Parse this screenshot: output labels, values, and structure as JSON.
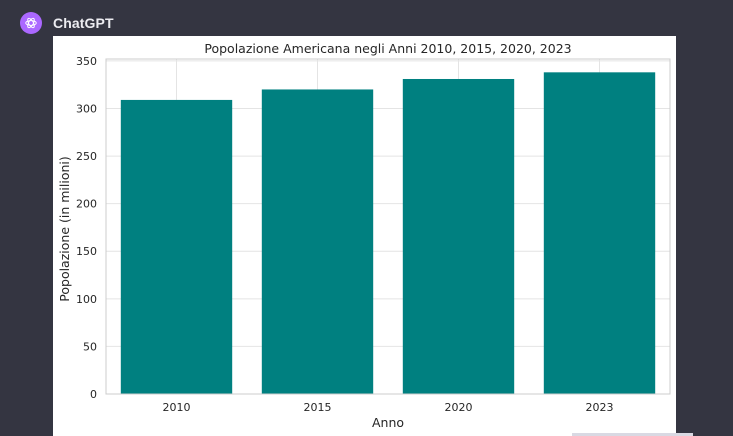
{
  "app": {
    "sender_name": "ChatGPT",
    "avatar_icon": "openai-logo-icon",
    "avatar_color": "#ab68ff",
    "background_color": "#343541"
  },
  "chart_data": {
    "type": "bar",
    "title": "Popolazione Americana negli Anni 2010, 2015, 2020, 2023",
    "xlabel": "Anno",
    "ylabel": "Popolazione (in milioni)",
    "categories": [
      "2010",
      "2015",
      "2020",
      "2023"
    ],
    "values": [
      309,
      320,
      331,
      338
    ],
    "ylim": [
      0,
      352
    ],
    "yticks": [
      0,
      50,
      100,
      150,
      200,
      250,
      300,
      350
    ],
    "bar_color": "#008080",
    "grid": true,
    "legend": "none"
  }
}
